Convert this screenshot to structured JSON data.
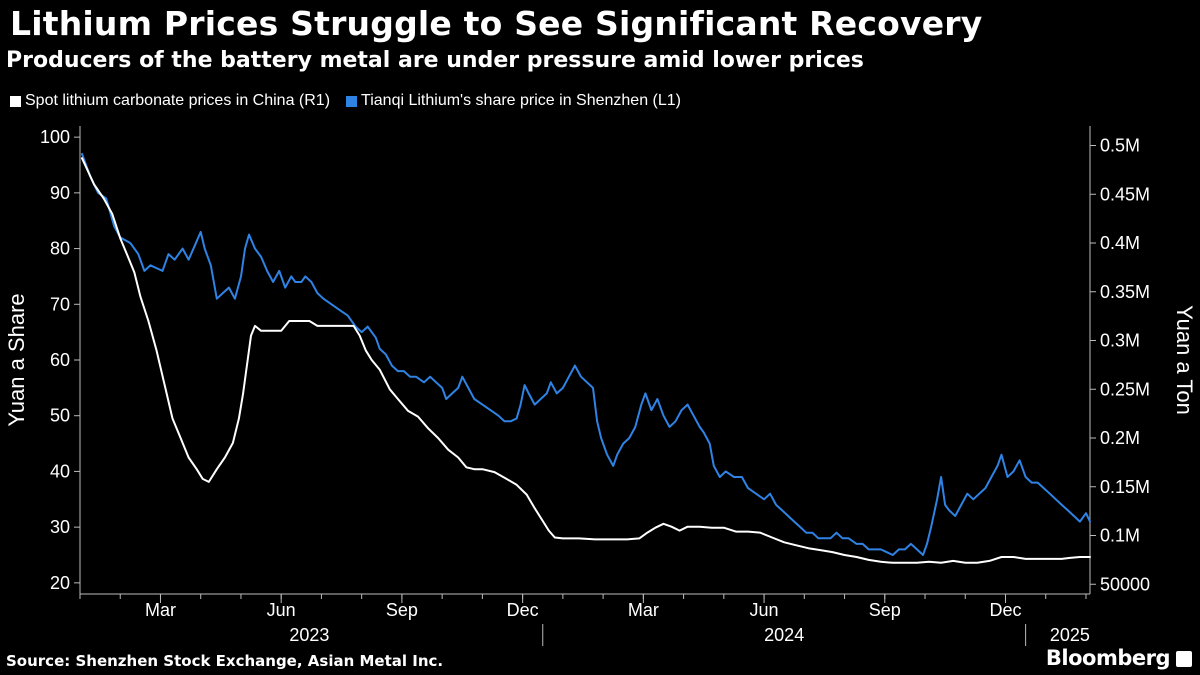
{
  "title": "Lithium Prices Struggle to See Significant Recovery",
  "subtitle": "Producers of the battery metal are under pressure amid lower prices",
  "source": "Source: Shenzhen Stock Exchange, Asian Metal Inc.",
  "brand": "Bloomberg",
  "colors": {
    "background": "#000000",
    "share": "#2f83e4",
    "lithium": "#ffffff"
  },
  "chart_data": {
    "type": "line",
    "legend": [
      {
        "name": "Spot lithium carbonate prices in China (R1)",
        "color": "#ffffff"
      },
      {
        "name": "Tianqi Lithium's share price in Shenzhen (L1)",
        "color": "#2f83e4"
      }
    ],
    "left_axis": {
      "label": "Yuan a Share",
      "range": [
        18,
        102
      ],
      "ticks": [
        20,
        30,
        40,
        50,
        60,
        70,
        80,
        90,
        100
      ],
      "tick_labels": [
        "20",
        "30",
        "40",
        "50",
        "60",
        "70",
        "80",
        "90",
        "100"
      ]
    },
    "right_axis": {
      "label": "Yuan a Ton",
      "range": [
        40000,
        520000
      ],
      "ticks": [
        50000,
        100000,
        150000,
        200000,
        250000,
        300000,
        350000,
        400000,
        450000,
        500000
      ],
      "tick_labels": [
        "50000",
        "0.1M",
        "0.15M",
        "0.2M",
        "0.25M",
        "0.3M",
        "0.35M",
        "0.4M",
        "0.45M",
        "0.5M"
      ]
    },
    "x_axis": {
      "range": [
        0,
        25.1
      ],
      "month_ticks": [
        {
          "label": "Mar",
          "pos": 2
        },
        {
          "label": "Jun",
          "pos": 5
        },
        {
          "label": "Sep",
          "pos": 8
        },
        {
          "label": "Dec",
          "pos": 11
        },
        {
          "label": "Mar",
          "pos": 14
        },
        {
          "label": "Jun",
          "pos": 17
        },
        {
          "label": "Sep",
          "pos": 20
        },
        {
          "label": "Dec",
          "pos": 23
        }
      ],
      "year_labels": [
        {
          "label": "2023",
          "pos": 5.7
        },
        {
          "label": "2024",
          "pos": 17.5
        },
        {
          "label": "2025",
          "pos": 24.6
        }
      ],
      "year_dividers": [
        11.5,
        23.5
      ]
    },
    "series": [
      {
        "name": "Tianqi Lithium's share price in Shenzhen (L1)",
        "axis": "left",
        "points": [
          [
            0.05,
            97
          ],
          [
            0.25,
            93
          ],
          [
            0.45,
            90
          ],
          [
            0.65,
            89
          ],
          [
            0.85,
            84
          ],
          [
            1.0,
            82
          ],
          [
            1.25,
            81
          ],
          [
            1.45,
            79
          ],
          [
            1.6,
            76
          ],
          [
            1.75,
            77
          ],
          [
            1.9,
            76.5
          ],
          [
            2.05,
            76
          ],
          [
            2.2,
            79
          ],
          [
            2.35,
            78
          ],
          [
            2.55,
            80
          ],
          [
            2.7,
            78
          ],
          [
            2.85,
            80.5
          ],
          [
            3.0,
            83
          ],
          [
            3.1,
            80
          ],
          [
            3.25,
            77
          ],
          [
            3.4,
            71
          ],
          [
            3.55,
            72
          ],
          [
            3.7,
            73
          ],
          [
            3.85,
            71
          ],
          [
            4.0,
            75
          ],
          [
            4.1,
            80
          ],
          [
            4.2,
            82.5
          ],
          [
            4.35,
            80
          ],
          [
            4.5,
            78.5
          ],
          [
            4.65,
            76
          ],
          [
            4.8,
            74
          ],
          [
            4.95,
            76
          ],
          [
            5.1,
            73
          ],
          [
            5.25,
            75
          ],
          [
            5.35,
            74
          ],
          [
            5.5,
            74
          ],
          [
            5.6,
            75
          ],
          [
            5.75,
            74
          ],
          [
            5.9,
            72
          ],
          [
            6.05,
            71
          ],
          [
            6.25,
            70
          ],
          [
            6.45,
            69
          ],
          [
            6.65,
            68
          ],
          [
            6.85,
            66
          ],
          [
            7.0,
            65
          ],
          [
            7.15,
            66
          ],
          [
            7.35,
            64
          ],
          [
            7.45,
            62
          ],
          [
            7.6,
            61
          ],
          [
            7.75,
            59
          ],
          [
            7.9,
            58
          ],
          [
            8.05,
            58
          ],
          [
            8.2,
            57
          ],
          [
            8.35,
            57
          ],
          [
            8.55,
            56
          ],
          [
            8.7,
            57
          ],
          [
            8.85,
            56
          ],
          [
            9.0,
            55
          ],
          [
            9.1,
            53
          ],
          [
            9.25,
            54
          ],
          [
            9.4,
            55
          ],
          [
            9.5,
            57
          ],
          [
            9.65,
            55
          ],
          [
            9.8,
            53
          ],
          [
            10.0,
            52
          ],
          [
            10.2,
            51
          ],
          [
            10.4,
            50
          ],
          [
            10.55,
            49
          ],
          [
            10.7,
            49
          ],
          [
            10.85,
            49.5
          ],
          [
            10.95,
            52
          ],
          [
            11.05,
            55.5
          ],
          [
            11.15,
            54
          ],
          [
            11.3,
            52
          ],
          [
            11.45,
            53
          ],
          [
            11.6,
            54
          ],
          [
            11.7,
            56
          ],
          [
            11.85,
            54
          ],
          [
            12.0,
            55
          ],
          [
            12.15,
            57
          ],
          [
            12.3,
            59
          ],
          [
            12.45,
            57
          ],
          [
            12.6,
            56
          ],
          [
            12.75,
            55
          ],
          [
            12.85,
            49
          ],
          [
            12.95,
            46
          ],
          [
            13.1,
            43
          ],
          [
            13.25,
            41
          ],
          [
            13.35,
            43
          ],
          [
            13.5,
            45
          ],
          [
            13.65,
            46
          ],
          [
            13.8,
            48
          ],
          [
            13.95,
            52
          ],
          [
            14.05,
            54
          ],
          [
            14.2,
            51
          ],
          [
            14.35,
            53
          ],
          [
            14.5,
            50
          ],
          [
            14.65,
            48
          ],
          [
            14.8,
            49
          ],
          [
            14.95,
            51
          ],
          [
            15.1,
            52
          ],
          [
            15.25,
            50
          ],
          [
            15.4,
            48
          ],
          [
            15.5,
            47
          ],
          [
            15.65,
            45
          ],
          [
            15.75,
            41
          ],
          [
            15.9,
            39
          ],
          [
            16.05,
            40
          ],
          [
            16.25,
            39
          ],
          [
            16.45,
            39
          ],
          [
            16.6,
            37
          ],
          [
            16.8,
            36
          ],
          [
            17.0,
            35
          ],
          [
            17.15,
            36
          ],
          [
            17.3,
            34
          ],
          [
            17.45,
            33
          ],
          [
            17.6,
            32
          ],
          [
            17.75,
            31
          ],
          [
            17.9,
            30
          ],
          [
            18.05,
            29
          ],
          [
            18.2,
            29
          ],
          [
            18.35,
            28
          ],
          [
            18.5,
            28
          ],
          [
            18.65,
            28
          ],
          [
            18.8,
            29
          ],
          [
            18.95,
            28
          ],
          [
            19.1,
            28
          ],
          [
            19.3,
            27
          ],
          [
            19.45,
            27
          ],
          [
            19.6,
            26
          ],
          [
            19.75,
            26
          ],
          [
            19.9,
            26
          ],
          [
            20.05,
            25.5
          ],
          [
            20.2,
            25
          ],
          [
            20.35,
            26
          ],
          [
            20.5,
            26
          ],
          [
            20.65,
            27
          ],
          [
            20.8,
            26
          ],
          [
            20.95,
            25
          ],
          [
            21.05,
            27
          ],
          [
            21.15,
            30
          ],
          [
            21.3,
            35
          ],
          [
            21.4,
            39
          ],
          [
            21.5,
            34
          ],
          [
            21.6,
            33
          ],
          [
            21.75,
            32
          ],
          [
            21.9,
            34
          ],
          [
            22.05,
            36
          ],
          [
            22.2,
            35
          ],
          [
            22.35,
            36
          ],
          [
            22.5,
            37
          ],
          [
            22.65,
            39
          ],
          [
            22.8,
            41
          ],
          [
            22.9,
            43
          ],
          [
            23.05,
            39
          ],
          [
            23.2,
            40
          ],
          [
            23.35,
            42
          ],
          [
            23.5,
            39
          ],
          [
            23.65,
            38
          ],
          [
            23.8,
            38
          ],
          [
            23.95,
            37
          ],
          [
            24.1,
            36
          ],
          [
            24.25,
            35
          ],
          [
            24.4,
            34
          ],
          [
            24.55,
            33
          ],
          [
            24.7,
            32
          ],
          [
            24.85,
            31
          ],
          [
            25.0,
            32.5
          ],
          [
            25.1,
            31
          ]
        ]
      },
      {
        "name": "Spot lithium carbonate prices in China (R1)",
        "axis": "right",
        "points": [
          [
            0.05,
            487000
          ],
          [
            0.35,
            460000
          ],
          [
            0.6,
            445000
          ],
          [
            0.8,
            430000
          ],
          [
            1.0,
            405000
          ],
          [
            1.2,
            385000
          ],
          [
            1.35,
            370000
          ],
          [
            1.5,
            345000
          ],
          [
            1.7,
            320000
          ],
          [
            1.9,
            290000
          ],
          [
            2.1,
            255000
          ],
          [
            2.3,
            220000
          ],
          [
            2.5,
            200000
          ],
          [
            2.7,
            180000
          ],
          [
            2.9,
            168000
          ],
          [
            3.05,
            158000
          ],
          [
            3.2,
            155000
          ],
          [
            3.4,
            168000
          ],
          [
            3.6,
            180000
          ],
          [
            3.8,
            195000
          ],
          [
            3.95,
            220000
          ],
          [
            4.05,
            245000
          ],
          [
            4.15,
            275000
          ],
          [
            4.25,
            305000
          ],
          [
            4.35,
            315000
          ],
          [
            4.5,
            310000
          ],
          [
            4.8,
            310000
          ],
          [
            5.0,
            310000
          ],
          [
            5.2,
            320000
          ],
          [
            5.5,
            320000
          ],
          [
            5.7,
            320000
          ],
          [
            5.9,
            315000
          ],
          [
            6.1,
            315000
          ],
          [
            6.4,
            315000
          ],
          [
            6.6,
            315000
          ],
          [
            6.8,
            315000
          ],
          [
            6.95,
            305000
          ],
          [
            7.1,
            290000
          ],
          [
            7.25,
            280000
          ],
          [
            7.45,
            270000
          ],
          [
            7.7,
            250000
          ],
          [
            7.9,
            240000
          ],
          [
            8.15,
            228000
          ],
          [
            8.4,
            222000
          ],
          [
            8.65,
            210000
          ],
          [
            8.9,
            200000
          ],
          [
            9.15,
            188000
          ],
          [
            9.4,
            180000
          ],
          [
            9.6,
            170000
          ],
          [
            9.8,
            168000
          ],
          [
            10.0,
            168000
          ],
          [
            10.3,
            165000
          ],
          [
            10.6,
            158000
          ],
          [
            10.85,
            152000
          ],
          [
            11.1,
            142000
          ],
          [
            11.3,
            128000
          ],
          [
            11.5,
            115000
          ],
          [
            11.65,
            105000
          ],
          [
            11.8,
            98000
          ],
          [
            12.0,
            97000
          ],
          [
            12.4,
            97000
          ],
          [
            12.8,
            96000
          ],
          [
            13.2,
            96000
          ],
          [
            13.6,
            96000
          ],
          [
            13.9,
            97000
          ],
          [
            14.1,
            103000
          ],
          [
            14.3,
            108000
          ],
          [
            14.5,
            112000
          ],
          [
            14.7,
            109000
          ],
          [
            14.9,
            105000
          ],
          [
            15.1,
            109000
          ],
          [
            15.4,
            109000
          ],
          [
            15.7,
            108000
          ],
          [
            16.0,
            108000
          ],
          [
            16.3,
            104000
          ],
          [
            16.6,
            104000
          ],
          [
            16.9,
            103000
          ],
          [
            17.2,
            98000
          ],
          [
            17.5,
            93000
          ],
          [
            17.8,
            90000
          ],
          [
            18.1,
            87000
          ],
          [
            18.4,
            85000
          ],
          [
            18.7,
            83000
          ],
          [
            19.0,
            80000
          ],
          [
            19.3,
            78000
          ],
          [
            19.6,
            75000
          ],
          [
            19.9,
            73000
          ],
          [
            20.2,
            72000
          ],
          [
            20.5,
            72000
          ],
          [
            20.8,
            72000
          ],
          [
            21.1,
            73000
          ],
          [
            21.4,
            72000
          ],
          [
            21.7,
            74000
          ],
          [
            22.0,
            72000
          ],
          [
            22.3,
            72000
          ],
          [
            22.6,
            74000
          ],
          [
            22.9,
            78000
          ],
          [
            23.2,
            78000
          ],
          [
            23.5,
            76000
          ],
          [
            23.8,
            76000
          ],
          [
            24.1,
            76000
          ],
          [
            24.4,
            76000
          ],
          [
            24.6,
            77000
          ],
          [
            24.85,
            78000
          ],
          [
            25.1,
            78000
          ]
        ]
      }
    ]
  }
}
